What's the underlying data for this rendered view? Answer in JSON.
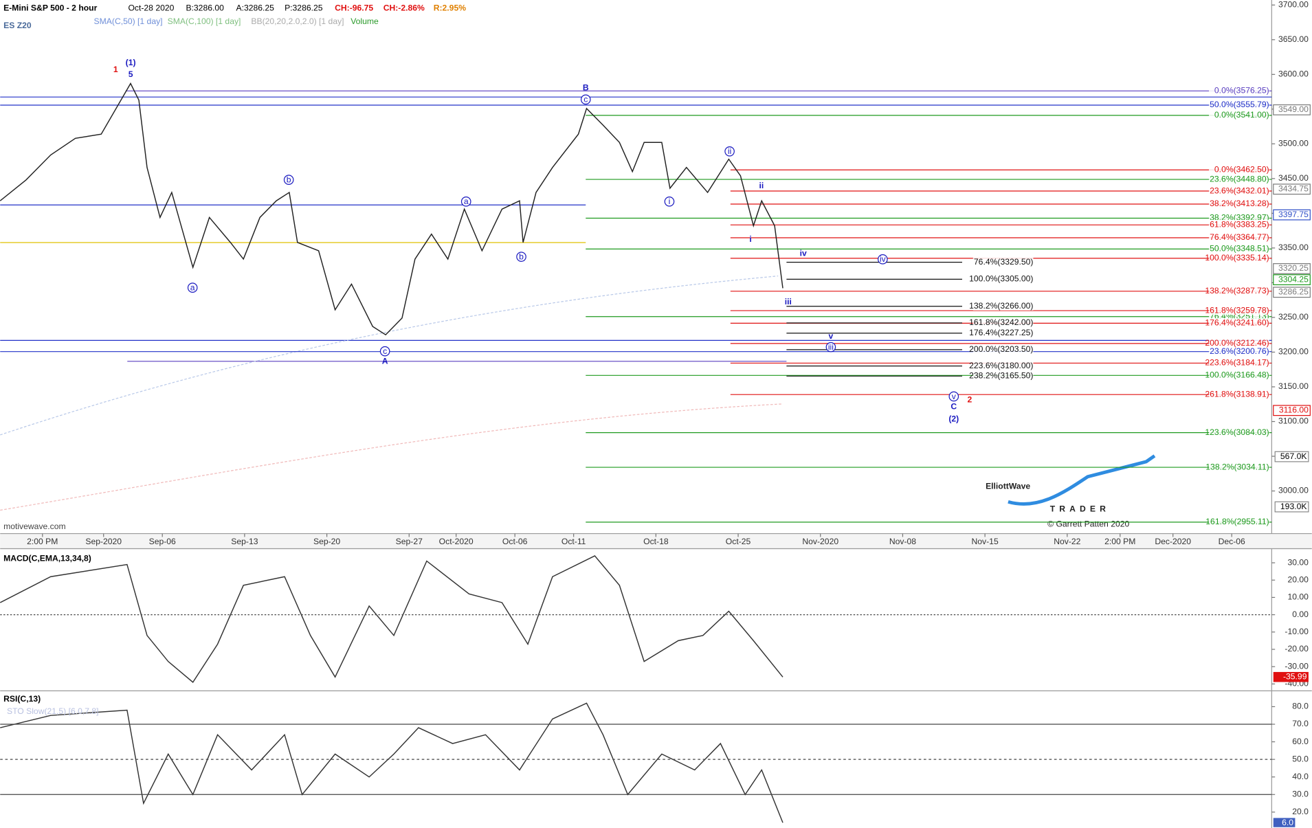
{
  "header": {
    "instrument": "E-Mini S&P 500 - 2 hour",
    "date": "Oct-28 2020",
    "bid": "B:3286.00",
    "ask": "A:3286.25",
    "price": "P:3286.25",
    "change": "CH:-96.75",
    "change_pct": "CH:-2.86%",
    "range": "R:2.95%",
    "symbol": "ES Z20"
  },
  "legend_items": [
    {
      "text": "SMA(C,50) [1 day]",
      "color": "#6f8fd8"
    },
    {
      "text": "SMA(C,100) [1 day]",
      "color": "#7fbf7f"
    },
    {
      "text": "BB(20,20,2.0,2.0) [1 day]",
      "color": "#aaaaaa"
    },
    {
      "text": "Volume",
      "color": "#2a9a2a"
    }
  ],
  "watermark": "motivewave.com",
  "logo": {
    "line1": "ElliottWave",
    "line2": "TRADER",
    "copyright": "© Garrett Patten 2020"
  },
  "chart_data": [
    {
      "type": "line",
      "color": "#222222",
      "x": [
        -6.8,
        -4.6,
        -2.5,
        -0.4,
        1.8,
        4.3,
        5.0,
        5.7,
        6.8,
        7.8,
        9.6,
        11.0,
        12.8,
        13.9,
        15.3,
        16.7,
        17.8,
        18.5,
        20.3,
        21.7,
        23.1,
        24.9,
        26.0,
        27.4,
        28.5,
        29.9,
        31.3,
        32.7,
        34.2,
        35.9,
        37.4,
        37.7,
        38.8,
        40.2,
        42.4,
        43.1,
        44.5,
        45.9,
        47.0,
        48.0,
        49.5,
        50.2,
        51.6,
        53.4,
        55.2,
        56.2,
        57.3,
        58.0,
        59.1,
        59.8
      ],
      "values": [
        3418,
        3448,
        3484,
        3508,
        3514,
        3587,
        3563,
        3466,
        3394,
        3430,
        3322,
        3394,
        3358,
        3334,
        3394,
        3418,
        3430,
        3358,
        3346,
        3261,
        3298,
        3237,
        3225,
        3249,
        3334,
        3370,
        3334,
        3406,
        3346,
        3406,
        3418,
        3358,
        3430,
        3466,
        3514,
        3551,
        3527,
        3502,
        3460,
        3502,
        3502,
        3436,
        3466,
        3430,
        3478,
        3454,
        3382,
        3418,
        3382,
        3292
      ],
      "xlim": [
        -6.8,
        101.4
      ],
      "xticks": [
        {
          "value": -3.2,
          "label": "2:00 PM"
        },
        {
          "value": 2,
          "label": "Sep-2020"
        },
        {
          "value": 7,
          "label": "Sep-06"
        },
        {
          "value": 14,
          "label": "Sep-13"
        },
        {
          "value": 21,
          "label": "Sep-20"
        },
        {
          "value": 28,
          "label": "Sep-27"
        },
        {
          "value": 32,
          "label": "Oct-2020"
        },
        {
          "value": 37,
          "label": "Oct-06"
        },
        {
          "value": 42,
          "label": "Oct-11"
        },
        {
          "value": 49,
          "label": "Oct-18"
        },
        {
          "value": 56,
          "label": "Oct-25"
        },
        {
          "value": 63,
          "label": "Nov-2020"
        },
        {
          "value": 70,
          "label": "Nov-08"
        },
        {
          "value": 77,
          "label": "Nov-15"
        },
        {
          "value": 84,
          "label": "Nov-22"
        },
        {
          "value": 88.5,
          "label": "2:00 PM"
        },
        {
          "value": 93,
          "label": "Dec-2020"
        },
        {
          "value": 98,
          "label": "Dec-06"
        }
      ],
      "ylim": [
        2938.6,
        3707.2
      ],
      "yticks": [
        {
          "value": 3000,
          "label": "3000.00"
        },
        {
          "value": 3050,
          "label": "3050.00"
        },
        {
          "value": 3100,
          "label": "3100.00"
        },
        {
          "value": 3150,
          "label": "3150.00"
        },
        {
          "value": 3200,
          "label": "3200.00"
        },
        {
          "value": 3250,
          "label": "3250.00"
        },
        {
          "value": 3300,
          "label": "3300.00"
        },
        {
          "value": 3350,
          "label": "3350.00"
        },
        {
          "value": 3400,
          "label": "3400.00"
        },
        {
          "value": 3450,
          "label": "3450.00"
        },
        {
          "value": 3500,
          "label": "3500.00"
        },
        {
          "value": 3550,
          "label": "3550.00"
        },
        {
          "value": 3600,
          "label": "3600.00"
        },
        {
          "value": 3650,
          "label": "3650.00"
        },
        {
          "value": 3700,
          "label": "3700.00"
        }
      ],
      "fib_groups": [
        {
          "color": "#5a3fc0",
          "levels": [
            {
              "value": 3576.25,
              "label": "0.0%(3576.25)"
            }
          ]
        },
        {
          "color": "#2030c8",
          "levels": [
            {
              "value": 3555.79,
              "label": "50.0%(3555.79)"
            },
            {
              "value": 3200.76,
              "label": "23.6%(3200.76)"
            }
          ]
        },
        {
          "color": "#1e9a1e",
          "levels": [
            {
              "value": 3541.0,
              "label": "0.0%(3541.00)"
            },
            {
              "value": 3448.8,
              "label": "23.6%(3448.80)"
            },
            {
              "value": 3392.97,
              "label": "38.2%(3392.97)"
            },
            {
              "value": 3348.51,
              "label": "50.0%(3348.51)"
            },
            {
              "value": 3251.13,
              "label": "76.4%(3251.13)"
            },
            {
              "value": 3166.48,
              "label": "100.0%(3166.48)"
            },
            {
              "value": 3084.03,
              "label": "123.6%(3084.03)"
            },
            {
              "value": 3034.11,
              "label": "138.2%(3034.11)"
            },
            {
              "value": 2955.11,
              "label": "161.8%(2955.11)"
            }
          ]
        },
        {
          "color": "#e01010",
          "levels": [
            {
              "value": 3462.5,
              "label": "0.0%(3462.50)"
            },
            {
              "value": 3432.01,
              "label": "23.6%(3432.01)"
            },
            {
              "value": 3413.28,
              "label": "38.2%(3413.28)"
            },
            {
              "value": 3383.25,
              "label": "61.8%(3383.25)"
            },
            {
              "value": 3364.77,
              "label": "76.4%(3364.77)"
            },
            {
              "value": 3335.14,
              "label": "100.0%(3335.14)"
            },
            {
              "value": 3287.73,
              "label": "138.2%(3287.73)"
            },
            {
              "value": 3259.78,
              "label": "161.8%(3259.78)"
            },
            {
              "value": 3241.6,
              "label": "176.4%(3241.60)"
            },
            {
              "value": 3212.46,
              "label": "200.0%(3212.46)"
            },
            {
              "value": 3184.17,
              "label": "223.6%(3184.17)"
            },
            {
              "value": 3138.91,
              "label": "261.8%(3138.91)"
            }
          ]
        },
        {
          "color": "#111111",
          "levels": [
            {
              "value": 3329.5,
              "label": "76.4%(3329.50)"
            },
            {
              "value": 3305.0,
              "label": "100.0%(3305.00)"
            },
            {
              "value": 3266.0,
              "label": "138.2%(3266.00)"
            },
            {
              "value": 3242.0,
              "label": "161.8%(3242.00)"
            },
            {
              "value": 3227.25,
              "label": "176.4%(3227.25)"
            },
            {
              "value": 3203.5,
              "label": "200.0%(3203.50)"
            },
            {
              "value": 3180.0,
              "label": "223.6%(3180.00)"
            },
            {
              "value": 3165.5,
              "label": "238.2%(3165.50)"
            }
          ]
        }
      ],
      "price_tags": [
        {
          "value": 3549,
          "label": "3549.00",
          "color": "#7a7a7a"
        },
        {
          "value": 3434.75,
          "label": "3434.75",
          "color": "#7a7a7a"
        },
        {
          "value": 3397.75,
          "label": "3397.75",
          "color": "#3050c8"
        },
        {
          "value": 3320.25,
          "label": "3320.25",
          "color": "#7a7a7a"
        },
        {
          "value": 3304.25,
          "label": "3304.25",
          "color": "#1e9a1e"
        },
        {
          "value": 3286.25,
          "label": "3286.25",
          "color": "#7a7a7a"
        },
        {
          "value": 3116,
          "label": "3116.00",
          "color": "#e01010"
        }
      ],
      "volume_tags": [
        "567.0K",
        "193.0K"
      ]
    },
    {
      "type": "line",
      "title": "MACD(C,EMA,13,34,8)",
      "color": "#333333",
      "x": [
        -6.8,
        -2.5,
        4.0,
        5.7,
        7.5,
        9.6,
        11.7,
        13.9,
        17.4,
        19.6,
        21.7,
        24.6,
        26.7,
        29.5,
        33.1,
        35.9,
        38.1,
        40.2,
        43.8,
        45.9,
        48.0,
        50.9,
        53.0,
        55.2,
        57.3,
        59.8
      ],
      "values": [
        7,
        22,
        29,
        -12,
        -27,
        -39,
        -17,
        17,
        22,
        -12,
        -36,
        5,
        -12,
        31,
        12,
        7,
        -17,
        22,
        34,
        17,
        -27,
        -15,
        -12,
        2,
        -15,
        -35.99
      ],
      "ylim": [
        -43.5,
        37.2
      ],
      "yticks": [
        {
          "value": 30,
          "label": "30.00"
        },
        {
          "value": 20,
          "label": "20.00"
        },
        {
          "value": 10,
          "label": "10.00"
        },
        {
          "value": 0,
          "label": "0.00"
        },
        {
          "value": -10,
          "label": "-10.00"
        },
        {
          "value": -20,
          "label": "-20.00"
        },
        {
          "value": -30,
          "label": "-30.00"
        },
        {
          "value": -40,
          "label": "-40.00"
        }
      ],
      "last_value": -35.99
    },
    {
      "type": "line",
      "title": "RSI(C,13)",
      "subtitle": "STO Slow(21,5) [6.0,7.8]",
      "color": "#333333",
      "x": [
        -6.8,
        -2.5,
        4.0,
        5.4,
        7.5,
        9.6,
        11.7,
        14.6,
        17.4,
        18.9,
        21.7,
        24.6,
        26.7,
        28.8,
        31.7,
        34.5,
        37.4,
        40.2,
        43.1,
        44.5,
        46.6,
        49.5,
        52.3,
        54.5,
        56.6,
        58.0,
        59.8
      ],
      "values": [
        68,
        75,
        78,
        25,
        53,
        30,
        64,
        44,
        64,
        30,
        53,
        40,
        53,
        68,
        59,
        64,
        44,
        73,
        82,
        64,
        30,
        53,
        44,
        59,
        30,
        44,
        14
      ],
      "ylim": [
        11.9,
        87.1
      ],
      "yticks": [
        {
          "value": 80,
          "label": "80.0"
        },
        {
          "value": 70,
          "label": "70.0"
        },
        {
          "value": 60,
          "label": "60.0"
        },
        {
          "value": 50,
          "label": "50.0"
        },
        {
          "value": 40,
          "label": "40.0"
        },
        {
          "value": 30,
          "label": "30.0"
        },
        {
          "value": 20,
          "label": "20.0"
        }
      ],
      "levels": [
        70,
        50,
        30
      ],
      "last_label": "6.0"
    }
  ],
  "wave_labels": [
    {
      "text": "1",
      "color": "#e01010",
      "circled": false
    },
    {
      "text": "(1)",
      "color": "#1a1ac0",
      "circled": false
    },
    {
      "text": "5",
      "color": "#1a1ac0",
      "circled": false
    },
    {
      "text": "a",
      "color": "#1a1ac0",
      "circled": true
    },
    {
      "text": "b",
      "color": "#1a1ac0",
      "circled": true
    },
    {
      "text": "c",
      "color": "#1a1ac0",
      "circled": true
    },
    {
      "text": "A",
      "color": "#1a1ac0",
      "circled": false
    },
    {
      "text": "a",
      "color": "#1a1ac0",
      "circled": true
    },
    {
      "text": "b",
      "color": "#1a1ac0",
      "circled": true
    },
    {
      "text": "B",
      "color": "#1a1ac0",
      "circled": false
    },
    {
      "text": "c",
      "color": "#1a1ac0",
      "circled": true
    },
    {
      "text": "i",
      "color": "#1a1ac0",
      "circled": true
    },
    {
      "text": "ii",
      "color": "#1a1ac0",
      "circled": true
    },
    {
      "text": "ii",
      "color": "#1a1ac0",
      "circled": false
    },
    {
      "text": "i",
      "color": "#1a1ac0",
      "circled": false
    },
    {
      "text": "iii",
      "color": "#1a1ac0",
      "circled": false
    },
    {
      "text": "iv",
      "color": "#1a1ac0",
      "circled": false
    },
    {
      "text": "iv",
      "color": "#1a1ac0",
      "circled": true
    },
    {
      "text": "v",
      "color": "#1a1ac0",
      "circled": false
    },
    {
      "text": "iii",
      "color": "#1a1ac0",
      "circled": true
    },
    {
      "text": "v",
      "color": "#1a1ac0",
      "circled": true
    },
    {
      "text": "C",
      "color": "#1a1ac0",
      "circled": false
    },
    {
      "text": "2",
      "color": "#e01010",
      "circled": false
    },
    {
      "text": "(2)",
      "color": "#1a1ac0",
      "circled": false
    }
  ]
}
